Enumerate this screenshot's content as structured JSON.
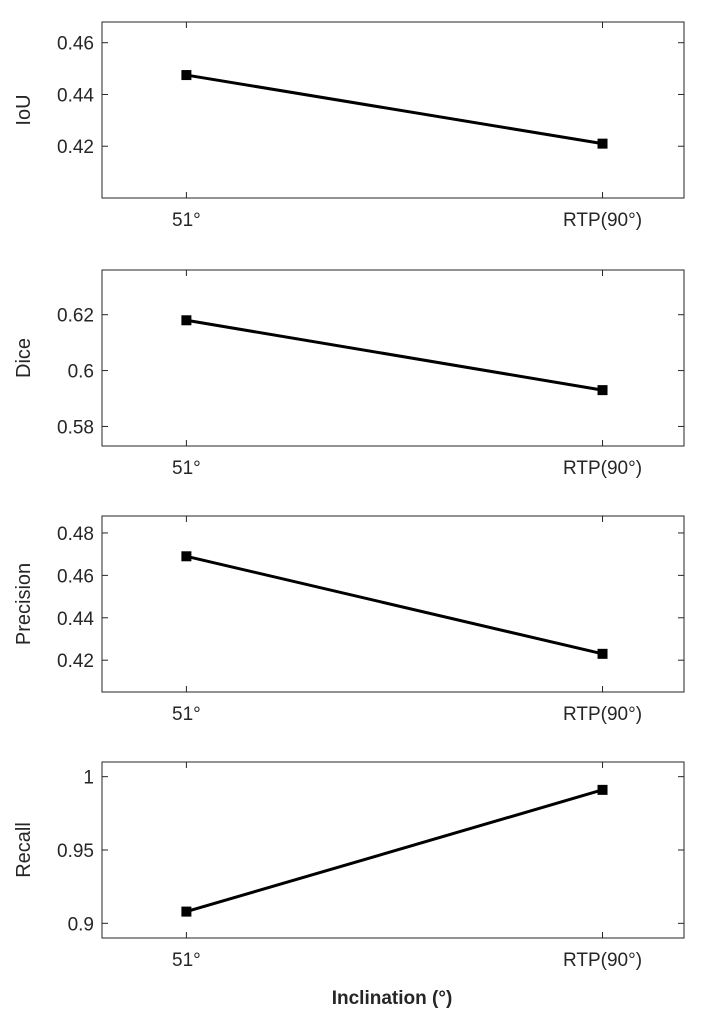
{
  "figure": {
    "xlabel": "Inclination (°)",
    "text_color": "#262626",
    "line_color": "#000000",
    "background": "#ffffff"
  },
  "chart_data": [
    {
      "type": "line",
      "ylabel": "IoU",
      "categories": [
        "51°",
        "RTP(90°)"
      ],
      "values": [
        0.4475,
        0.421
      ],
      "yticks": [
        0.42,
        0.44,
        0.46
      ],
      "ytick_labels": [
        "0.42",
        "0.44",
        "0.46"
      ],
      "ylim": [
        0.4,
        0.468
      ]
    },
    {
      "type": "line",
      "ylabel": "Dice",
      "categories": [
        "51°",
        "RTP(90°)"
      ],
      "values": [
        0.618,
        0.593
      ],
      "yticks": [
        0.58,
        0.6,
        0.62
      ],
      "ytick_labels": [
        "0.58",
        "0.6",
        "0.62"
      ],
      "ylim": [
        0.573,
        0.636
      ]
    },
    {
      "type": "line",
      "ylabel": "Precision",
      "categories": [
        "51°",
        "RTP(90°)"
      ],
      "values": [
        0.469,
        0.423
      ],
      "yticks": [
        0.42,
        0.44,
        0.46,
        0.48
      ],
      "ytick_labels": [
        "0.42",
        "0.44",
        "0.46",
        "0.48"
      ],
      "ylim": [
        0.405,
        0.488
      ]
    },
    {
      "type": "line",
      "ylabel": "Recall",
      "categories": [
        "51°",
        "RTP(90°)"
      ],
      "values": [
        0.908,
        0.991
      ],
      "yticks": [
        0.9,
        0.95,
        1.0
      ],
      "ytick_labels": [
        "0.9",
        "0.95",
        "1"
      ],
      "ylim": [
        0.89,
        1.01
      ]
    }
  ]
}
